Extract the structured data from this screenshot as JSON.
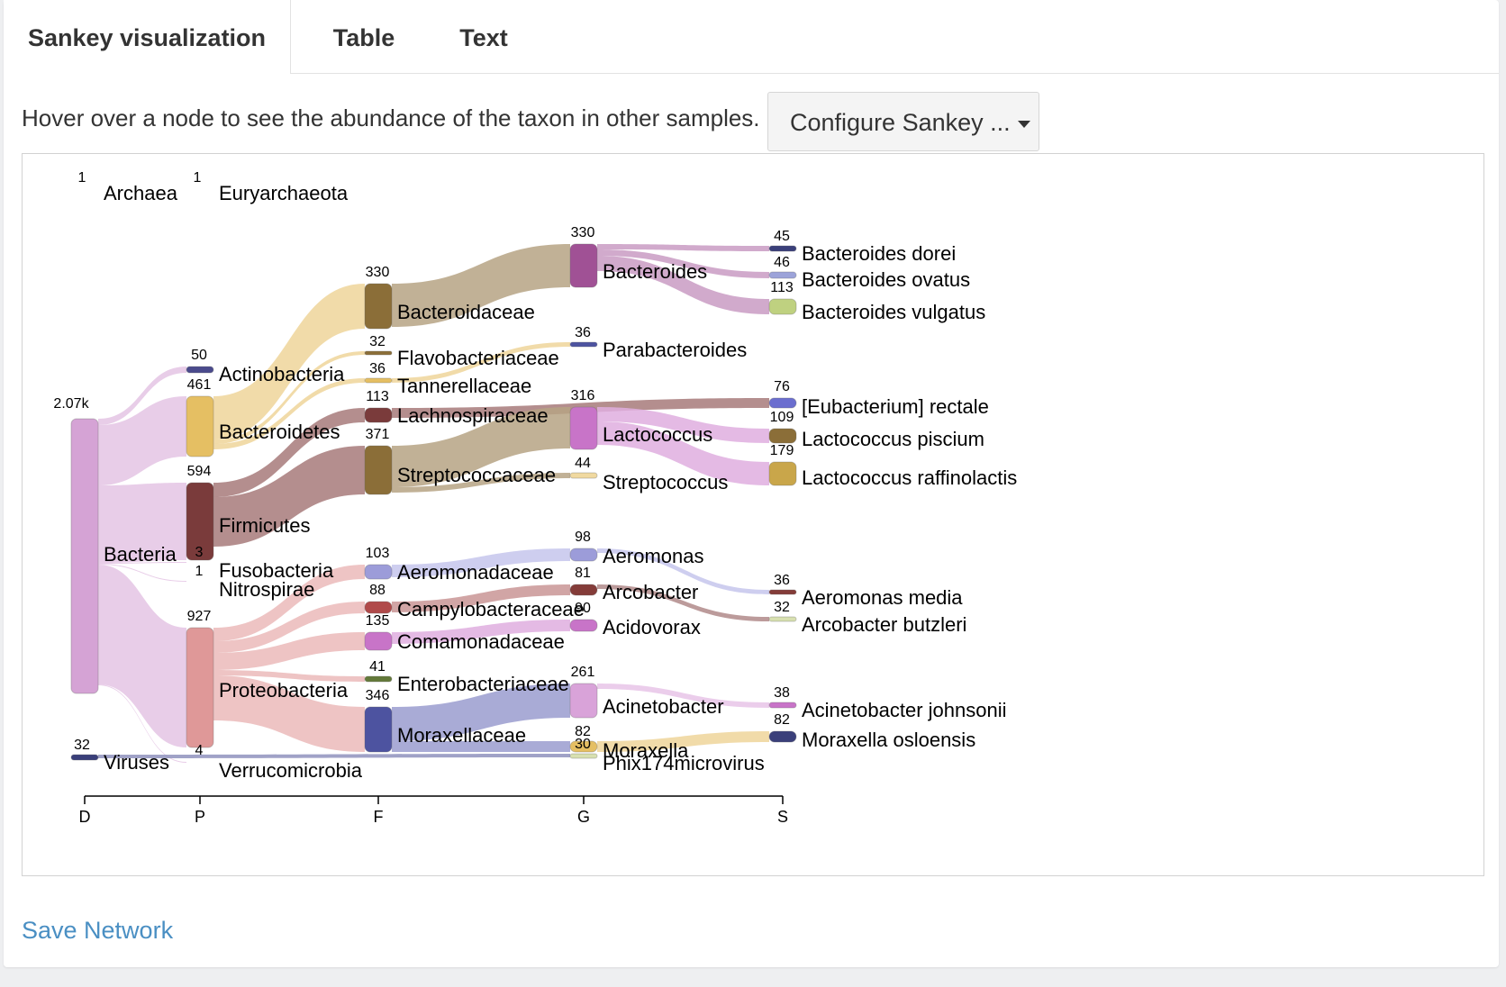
{
  "tabs": [
    {
      "label": "Sankey visualization",
      "active": true
    },
    {
      "label": "Table",
      "active": false
    },
    {
      "label": "Text",
      "active": false
    }
  ],
  "hint": "Hover over a node to see the abundance of the taxon in other samples.",
  "config_button": "Configure Sankey ...",
  "save_link": "Save Network",
  "chart_data": {
    "type": "sankey",
    "levels": [
      "D",
      "P",
      "F",
      "G",
      "S"
    ],
    "nodes": [
      {
        "id": "archaea",
        "label": "Archaea",
        "value": "1",
        "level": "D",
        "color": "#ffffff"
      },
      {
        "id": "euryarchaeota",
        "label": "Euryarchaeota",
        "value": "1",
        "level": "P",
        "color": "#ffffff"
      },
      {
        "id": "bacteria",
        "label": "Bacteria",
        "value": "2.07k",
        "level": "D",
        "color": "#d5a3d5"
      },
      {
        "id": "viruses",
        "label": "Viruses",
        "value": "32",
        "level": "D",
        "color": "#3a3f7a"
      },
      {
        "id": "actinobacteria",
        "label": "Actinobacteria",
        "value": "50",
        "level": "P",
        "color": "#4a4a8c"
      },
      {
        "id": "bacteroidetes",
        "label": "Bacteroidetes",
        "value": "461",
        "level": "P",
        "color": "#e5bf63"
      },
      {
        "id": "firmicutes",
        "label": "Firmicutes",
        "value": "594",
        "level": "P",
        "color": "#7a3b3b"
      },
      {
        "id": "fusobacteria",
        "label": "Fusobacteria",
        "value": "3",
        "level": "P",
        "color": "#ffffff"
      },
      {
        "id": "nitrospirae",
        "label": "Nitrospirae",
        "value": "1",
        "level": "P",
        "color": "#ffffff"
      },
      {
        "id": "proteobacteria",
        "label": "Proteobacteria",
        "value": "927",
        "level": "P",
        "color": "#df9898"
      },
      {
        "id": "verrucomicrobia",
        "label": "Verrucomicrobia",
        "value": "4",
        "level": "P",
        "color": "#ffffff"
      },
      {
        "id": "bacteroidaceae",
        "label": "Bacteroidaceae",
        "value": "330",
        "level": "F",
        "color": "#8b6e38"
      },
      {
        "id": "flavobacteriaceae",
        "label": "Flavobacteriaceae",
        "value": "32",
        "level": "F",
        "color": "#8b6e38"
      },
      {
        "id": "tannerellaceae",
        "label": "Tannerellaceae",
        "value": "36",
        "level": "F",
        "color": "#e5bf63"
      },
      {
        "id": "lachnospiraceae",
        "label": "Lachnospiraceae",
        "value": "113",
        "level": "F",
        "color": "#7a3b3b"
      },
      {
        "id": "streptococcaceae",
        "label": "Streptococcaceae",
        "value": "371",
        "level": "F",
        "color": "#8b6e38"
      },
      {
        "id": "aeromonadaceae",
        "label": "Aeromonadaceae",
        "value": "103",
        "level": "F",
        "color": "#9c9cd9"
      },
      {
        "id": "campylobacteraceae",
        "label": "Campylobacteraceae",
        "value": "88",
        "level": "F",
        "color": "#b04a4a"
      },
      {
        "id": "comamonadaceae",
        "label": "Comamonadaceae",
        "value": "135",
        "level": "F",
        "color": "#c874c8"
      },
      {
        "id": "enterobacteriaceae",
        "label": "Enterobacteriaceae",
        "value": "41",
        "level": "F",
        "color": "#637939"
      },
      {
        "id": "moraxellaceae",
        "label": "Moraxellaceae",
        "value": "346",
        "level": "F",
        "color": "#4d53a0"
      },
      {
        "id": "bacteroides",
        "label": "Bacteroides",
        "value": "330",
        "level": "G",
        "color": "#a05195"
      },
      {
        "id": "parabacteroides",
        "label": "Parabacteroides",
        "value": "36",
        "level": "G",
        "color": "#4d53a0"
      },
      {
        "id": "lactococcus",
        "label": "Lactococcus",
        "value": "316",
        "level": "G",
        "color": "#c874c8"
      },
      {
        "id": "streptococcus",
        "label": "Streptococcus",
        "value": "44",
        "level": "G",
        "color": "#f0d9a0"
      },
      {
        "id": "aeromonas",
        "label": "Aeromonas",
        "value": "98",
        "level": "G",
        "color": "#9c9cd9"
      },
      {
        "id": "arcobacter",
        "label": "Arcobacter",
        "value": "81",
        "level": "G",
        "color": "#843c39"
      },
      {
        "id": "acidovorax",
        "label": "Acidovorax",
        "value": "90",
        "level": "G",
        "color": "#c874c8"
      },
      {
        "id": "acinetobacter",
        "label": "Acinetobacter",
        "value": "261",
        "level": "G",
        "color": "#d9a3d9"
      },
      {
        "id": "moraxella",
        "label": "Moraxella",
        "value": "82",
        "level": "G",
        "color": "#e5bf63"
      },
      {
        "id": "phix174",
        "label": "Phix174microvirus",
        "value": "30",
        "level": "G",
        "color": "#d8e0b0"
      },
      {
        "id": "b_dorei",
        "label": "Bacteroides dorei",
        "value": "45",
        "level": "S",
        "color": "#3a3f7a"
      },
      {
        "id": "b_ovatus",
        "label": "Bacteroides ovatus",
        "value": "46",
        "level": "S",
        "color": "#9ca3d9"
      },
      {
        "id": "b_vulgatus",
        "label": "Bacteroides vulgatus",
        "value": "113",
        "level": "S",
        "color": "#bfd180"
      },
      {
        "id": "e_rectale",
        "label": "[Eubacterium] rectale",
        "value": "76",
        "level": "S",
        "color": "#6b6ecf"
      },
      {
        "id": "l_piscium",
        "label": "Lactococcus piscium",
        "value": "109",
        "level": "S",
        "color": "#8b6e38"
      },
      {
        "id": "l_raffinolactis",
        "label": "Lactococcus raffinolactis",
        "value": "179",
        "level": "S",
        "color": "#c9a64a"
      },
      {
        "id": "a_media",
        "label": "Aeromonas media",
        "value": "36",
        "level": "S",
        "color": "#843c39"
      },
      {
        "id": "a_butzleri",
        "label": "Arcobacter butzleri",
        "value": "32",
        "level": "S",
        "color": "#d8e0b0"
      },
      {
        "id": "a_johnsonii",
        "label": "Acinetobacter johnsonii",
        "value": "38",
        "level": "S",
        "color": "#c874c8"
      },
      {
        "id": "m_osloensis",
        "label": "Moraxella osloensis",
        "value": "82",
        "level": "S",
        "color": "#3a3f7a"
      }
    ],
    "links": [
      {
        "source": "bacteria",
        "target": "actinobacteria",
        "color": "#e4c4e4"
      },
      {
        "source": "bacteria",
        "target": "bacteroidetes",
        "color": "#e4c4e4"
      },
      {
        "source": "bacteria",
        "target": "firmicutes",
        "color": "#e4c4e4"
      },
      {
        "source": "bacteria",
        "target": "fusobacteria",
        "color": "#e4c4e4"
      },
      {
        "source": "bacteria",
        "target": "nitrospirae",
        "color": "#e4c4e4"
      },
      {
        "source": "bacteria",
        "target": "proteobacteria",
        "color": "#e4c4e4"
      },
      {
        "source": "bacteria",
        "target": "verrucomicrobia",
        "color": "#e4c4e4"
      },
      {
        "source": "bacteroidetes",
        "target": "bacteroidaceae",
        "color": "#efd59a"
      },
      {
        "source": "bacteroidetes",
        "target": "flavobacteriaceae",
        "color": "#efd59a"
      },
      {
        "source": "bacteroidetes",
        "target": "tannerellaceae",
        "color": "#efd59a"
      },
      {
        "source": "firmicutes",
        "target": "lachnospiraceae",
        "color": "#a77a7a"
      },
      {
        "source": "firmicutes",
        "target": "streptococcaceae",
        "color": "#a77a7a"
      },
      {
        "source": "proteobacteria",
        "target": "aeromonadaceae",
        "color": "#ebbaba"
      },
      {
        "source": "proteobacteria",
        "target": "campylobacteraceae",
        "color": "#ebbaba"
      },
      {
        "source": "proteobacteria",
        "target": "comamonadaceae",
        "color": "#ebbaba"
      },
      {
        "source": "proteobacteria",
        "target": "enterobacteriaceae",
        "color": "#ebbaba"
      },
      {
        "source": "proteobacteria",
        "target": "moraxellaceae",
        "color": "#ebbaba"
      },
      {
        "source": "bacteroidaceae",
        "target": "bacteroides",
        "color": "#b6a384"
      },
      {
        "source": "tannerellaceae",
        "target": "parabacteroides",
        "color": "#efd59a"
      },
      {
        "source": "lachnospiraceae",
        "target": "e_rectale",
        "color": "#a77a7a"
      },
      {
        "source": "streptococcaceae",
        "target": "lactococcus",
        "color": "#b6a384"
      },
      {
        "source": "streptococcaceae",
        "target": "streptococcus",
        "color": "#b6a384"
      },
      {
        "source": "aeromonadaceae",
        "target": "aeromonas",
        "color": "#c6c6ec"
      },
      {
        "source": "campylobacteraceae",
        "target": "arcobacter",
        "color": "#c99595"
      },
      {
        "source": "comamonadaceae",
        "target": "acidovorax",
        "color": "#dfaedf"
      },
      {
        "source": "moraxellaceae",
        "target": "acinetobacter",
        "color": "#9a9ccf"
      },
      {
        "source": "moraxellaceae",
        "target": "moraxella",
        "color": "#9a9ccf"
      },
      {
        "source": "bacteroides",
        "target": "b_dorei",
        "color": "#c99bc3"
      },
      {
        "source": "bacteroides",
        "target": "b_ovatus",
        "color": "#c99bc3"
      },
      {
        "source": "bacteroides",
        "target": "b_vulgatus",
        "color": "#c99bc3"
      },
      {
        "source": "lactococcus",
        "target": "l_piscium",
        "color": "#dfaedf"
      },
      {
        "source": "lactococcus",
        "target": "l_raffinolactis",
        "color": "#dfaedf"
      },
      {
        "source": "aeromonas",
        "target": "a_media",
        "color": "#c6c6ec"
      },
      {
        "source": "arcobacter",
        "target": "a_butzleri",
        "color": "#b08a8a"
      },
      {
        "source": "acinetobacter",
        "target": "a_johnsonii",
        "color": "#e8c4e8"
      },
      {
        "source": "moraxella",
        "target": "m_osloensis",
        "color": "#efd59a"
      },
      {
        "source": "viruses",
        "target": "phix174",
        "color": "#8f92bd"
      }
    ]
  }
}
